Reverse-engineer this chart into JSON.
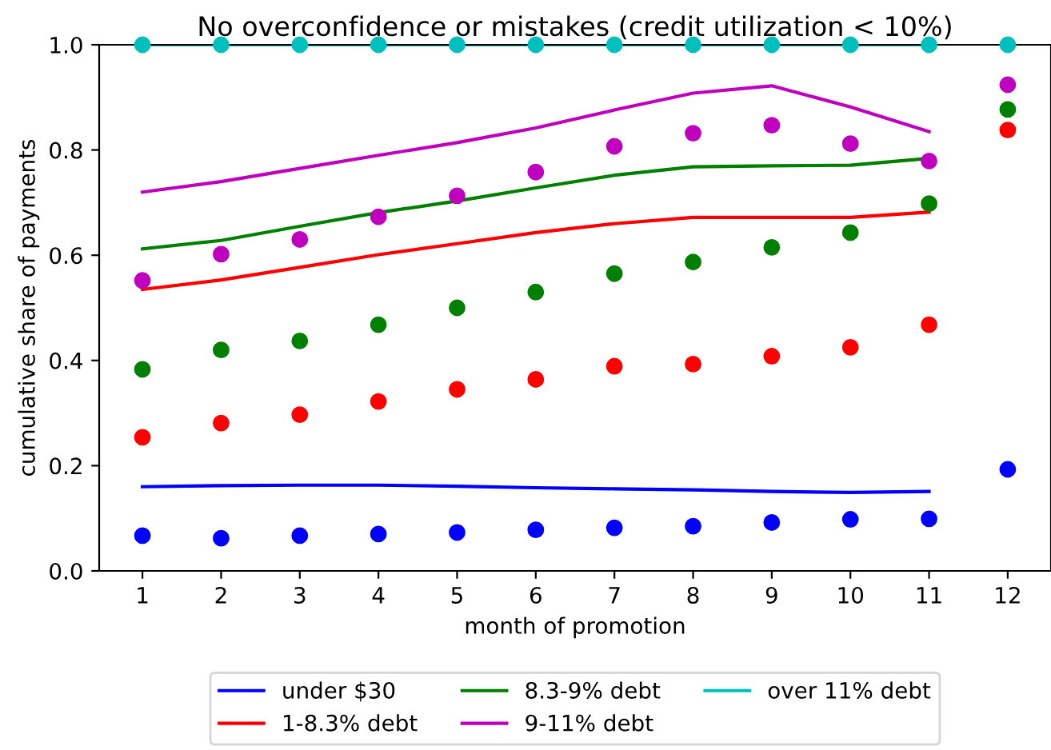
{
  "chart_data": {
    "type": "scatter",
    "title": "No overconfidence or mistakes (credit utilization < 10%)",
    "xlabel": "month of promotion",
    "ylabel": "cumulative share of payments",
    "xlim": [
      0.45,
      12.55
    ],
    "xticks": [
      1,
      2,
      3,
      4,
      5,
      6,
      7,
      8,
      9,
      10,
      11,
      12
    ],
    "ylim": [
      0.0,
      1.0
    ],
    "yticks": [
      {
        "value": 0.0,
        "label": "0.0"
      },
      0.2,
      0.4,
      0.6,
      0.8,
      {
        "value": 1.0,
        "label": "1.0"
      }
    ],
    "grid": false,
    "legend": "bottom",
    "series": [
      {
        "name": "under $30",
        "type": "line",
        "color": "#0000ff",
        "x": [
          1,
          2,
          3,
          4,
          5,
          6,
          7,
          8,
          9,
          10,
          11
        ],
        "values": [
          0.16,
          0.162,
          0.163,
          0.163,
          0.161,
          0.158,
          0.156,
          0.154,
          0.151,
          0.149,
          0.151
        ]
      },
      {
        "name": "1-8.3% debt",
        "type": "line",
        "color": "#ff0000",
        "x": [
          1,
          2,
          3,
          4,
          5,
          6,
          7,
          8,
          9,
          10,
          11
        ],
        "values": [
          0.535,
          0.553,
          0.577,
          0.601,
          0.622,
          0.643,
          0.66,
          0.672,
          0.672,
          0.672,
          0.682
        ]
      },
      {
        "name": "8.3-9% debt",
        "type": "line",
        "color": "#008000",
        "x": [
          1,
          2,
          3,
          4,
          5,
          6,
          7,
          8,
          9,
          10,
          11
        ],
        "values": [
          0.612,
          0.628,
          0.655,
          0.681,
          0.703,
          0.728,
          0.752,
          0.768,
          0.77,
          0.771,
          0.784
        ]
      },
      {
        "name": "9-11% debt",
        "type": "line",
        "color": "#bf00bf",
        "x": [
          1,
          2,
          3,
          4,
          5,
          6,
          7,
          8,
          9,
          10,
          11
        ],
        "values": [
          0.72,
          0.74,
          0.765,
          0.79,
          0.814,
          0.842,
          0.876,
          0.908,
          0.922,
          0.882,
          0.835
        ]
      },
      {
        "name": "over 11% debt",
        "type": "line",
        "color": "#00bfbf",
        "x": [
          1,
          2,
          3,
          4,
          5,
          6,
          7,
          8,
          9,
          10,
          11
        ],
        "values": [
          1.0,
          1.0,
          1.0,
          1.0,
          1.0,
          1.0,
          1.0,
          1.0,
          1.0,
          1.0,
          1.0
        ]
      },
      {
        "marker": "circle",
        "color": "#0000ff",
        "x": [
          1,
          2,
          3,
          4,
          5,
          6,
          7,
          8,
          9,
          10,
          11,
          12
        ],
        "values": [
          0.067,
          0.062,
          0.067,
          0.07,
          0.073,
          0.078,
          0.082,
          0.085,
          0.092,
          0.098,
          0.099,
          0.193
        ]
      },
      {
        "marker": "circle",
        "color": "#ff0000",
        "x": [
          1,
          2,
          3,
          4,
          5,
          6,
          7,
          8,
          9,
          10,
          11,
          12
        ],
        "values": [
          0.254,
          0.281,
          0.297,
          0.322,
          0.345,
          0.364,
          0.389,
          0.393,
          0.408,
          0.425,
          0.468,
          0.838
        ]
      },
      {
        "marker": "circle",
        "color": "#008000",
        "x": [
          1,
          2,
          3,
          4,
          5,
          6,
          7,
          8,
          9,
          10,
          11,
          12
        ],
        "values": [
          0.383,
          0.42,
          0.437,
          0.468,
          0.5,
          0.53,
          0.565,
          0.587,
          0.615,
          0.643,
          0.698,
          0.877
        ]
      },
      {
        "marker": "circle",
        "color": "#bf00bf",
        "x": [
          1,
          2,
          3,
          4,
          5,
          6,
          7,
          8,
          9,
          10,
          11,
          12
        ],
        "values": [
          0.552,
          0.602,
          0.63,
          0.673,
          0.713,
          0.758,
          0.807,
          0.832,
          0.847,
          0.812,
          0.779,
          0.924
        ]
      },
      {
        "marker": "circle",
        "color": "#00bfbf",
        "x": [
          1,
          2,
          3,
          4,
          5,
          6,
          7,
          8,
          9,
          10,
          11,
          12
        ],
        "values": [
          1.0,
          1.0,
          1.0,
          1.0,
          1.0,
          1.0,
          1.0,
          1.0,
          1.0,
          1.0,
          1.0,
          1.0
        ]
      }
    ]
  }
}
